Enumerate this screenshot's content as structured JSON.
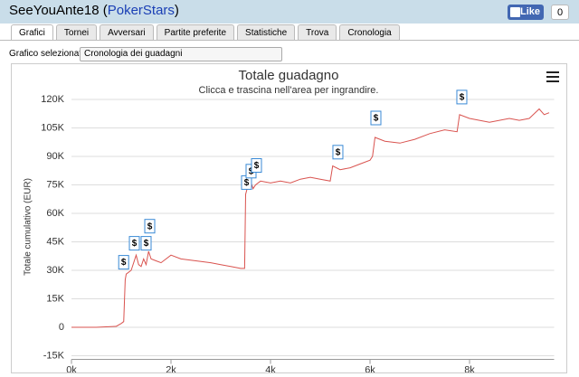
{
  "header": {
    "title": [
      "SeeYouAnte18 (",
      "PokerStars",
      ")"
    ],
    "like": "Like",
    "like_count": 0
  },
  "tabs": [
    "Grafici",
    "Tornei",
    "Avversari",
    "Partite preferite",
    "Statistiche",
    "Trova",
    "Cronologia"
  ],
  "selector": {
    "label": "Grafico selezionato",
    "value": "Cronologia dei guadagni"
  },
  "chart_data": {
    "type": "line",
    "title": "Totale guadagno",
    "subtitle": "Clicca e trascina nell'area per ingrandire.",
    "y_label": "Totale cumulativo (EUR)",
    "color": "#d9534f",
    "x": [
      0,
      500,
      900,
      1000,
      1050,
      1080,
      1100,
      1200,
      1300,
      1350,
      1400,
      1450,
      1500,
      1550,
      1600,
      1700,
      1800,
      2000,
      2200,
      2500,
      2800,
      3000,
      3200,
      3400,
      3480,
      3500,
      3550,
      3600,
      3650,
      3700,
      3800,
      4000,
      4200,
      4400,
      4600,
      4800,
      5000,
      5200,
      5250,
      5400,
      5600,
      5800,
      6000,
      6050,
      6100,
      6300,
      6600,
      6900,
      7200,
      7500,
      7750,
      7800,
      8000,
      8400,
      8800,
      9000,
      9200,
      9400,
      9500,
      9600
    ],
    "values": [
      0,
      0,
      500,
      2000,
      3000,
      25000,
      28000,
      30000,
      38000,
      33000,
      32000,
      36000,
      33000,
      40000,
      36000,
      35000,
      34000,
      38000,
      36000,
      35000,
      34000,
      33000,
      32000,
      31000,
      31000,
      70000,
      75000,
      77000,
      73000,
      75000,
      77000,
      76000,
      77000,
      76000,
      78000,
      79000,
      78000,
      77000,
      85000,
      83000,
      84000,
      86000,
      88000,
      90000,
      100000,
      98000,
      97000,
      99000,
      102000,
      104000,
      103000,
      112000,
      110000,
      108000,
      110000,
      109000,
      110000,
      115000,
      112000,
      113000
    ],
    "flag_label": "$",
    "flags": [
      {
        "x": 1040,
        "y": 34000
      },
      {
        "x": 1255,
        "y": 44000
      },
      {
        "x": 1491,
        "y": 44000
      },
      {
        "x": 1564,
        "y": 53000
      },
      {
        "x": 3509,
        "y": 76000
      },
      {
        "x": 3600,
        "y": 82000
      },
      {
        "x": 3709,
        "y": 85000
      },
      {
        "x": 5345,
        "y": 92000
      },
      {
        "x": 6109,
        "y": 110000
      },
      {
        "x": 7836,
        "y": 121000
      }
    ],
    "xlim": [
      0,
      9700
    ],
    "ylim": [
      -15000,
      120000
    ],
    "grid": true,
    "xticks": [
      {
        "value": 0,
        "label": "0k"
      },
      {
        "value": 2000,
        "label": "2k"
      },
      {
        "value": 4000,
        "label": "4k"
      },
      {
        "value": 6000,
        "label": "6k"
      },
      {
        "value": 8000,
        "label": "8k"
      }
    ],
    "yticks": [
      {
        "value": -15000,
        "label": "-15K"
      },
      0,
      {
        "value": 15000,
        "label": "15K"
      },
      {
        "value": 30000,
        "label": "30K"
      },
      {
        "value": 45000,
        "label": "45K"
      },
      {
        "value": 60000,
        "label": "60K"
      },
      {
        "value": 75000,
        "label": "75K"
      },
      {
        "value": 90000,
        "label": "90K"
      },
      {
        "value": 105000,
        "label": "105K"
      },
      {
        "value": 120000,
        "label": "120K"
      }
    ]
  }
}
